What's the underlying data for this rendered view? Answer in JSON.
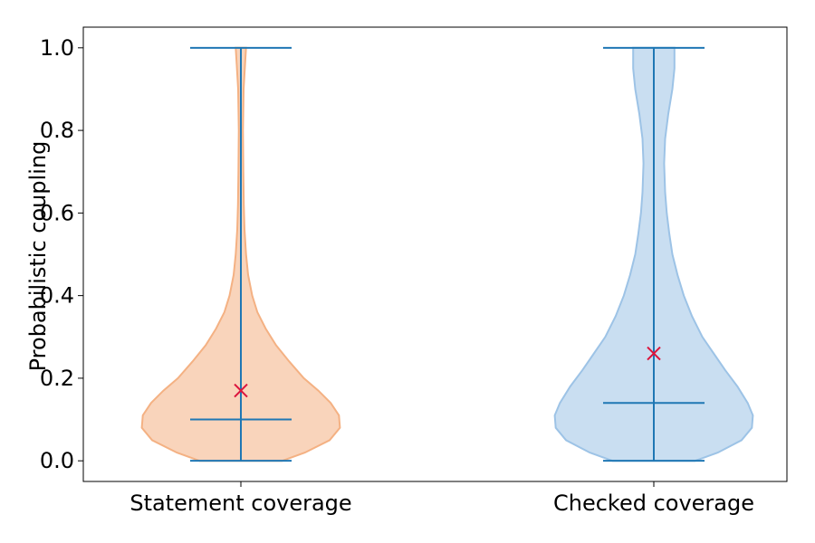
{
  "chart_data": {
    "type": "violin",
    "ylabel": "Probabilistic coupling",
    "ylim": [
      -0.05,
      1.05
    ],
    "yticks": [
      "0.0",
      "0.2",
      "0.4",
      "0.6",
      "0.8",
      "1.0"
    ],
    "grid": false,
    "categories": [
      "Statement coverage",
      "Checked coverage"
    ],
    "series": [
      {
        "category": "Statement coverage",
        "color": "#f4b183",
        "min": 0.0,
        "max": 1.0,
        "median": 0.1,
        "mean": 0.17,
        "density": [
          [
            0.0,
            0.4
          ],
          [
            0.02,
            0.62
          ],
          [
            0.05,
            0.86
          ],
          [
            0.08,
            0.96
          ],
          [
            0.11,
            0.95
          ],
          [
            0.14,
            0.87
          ],
          [
            0.17,
            0.75
          ],
          [
            0.2,
            0.61
          ],
          [
            0.24,
            0.47
          ],
          [
            0.28,
            0.34
          ],
          [
            0.32,
            0.24
          ],
          [
            0.36,
            0.16
          ],
          [
            0.4,
            0.11
          ],
          [
            0.45,
            0.07
          ],
          [
            0.5,
            0.05
          ],
          [
            0.56,
            0.035
          ],
          [
            0.62,
            0.028
          ],
          [
            0.7,
            0.024
          ],
          [
            0.8,
            0.02
          ],
          [
            0.9,
            0.026
          ],
          [
            0.96,
            0.04
          ],
          [
            1.0,
            0.05
          ]
        ]
      },
      {
        "category": "Checked coverage",
        "color": "#9dc3e6",
        "min": 0.0,
        "max": 1.0,
        "median": 0.14,
        "mean": 0.26,
        "density": [
          [
            0.0,
            0.4
          ],
          [
            0.02,
            0.62
          ],
          [
            0.05,
            0.85
          ],
          [
            0.08,
            0.95
          ],
          [
            0.11,
            0.96
          ],
          [
            0.14,
            0.91
          ],
          [
            0.18,
            0.81
          ],
          [
            0.22,
            0.69
          ],
          [
            0.26,
            0.58
          ],
          [
            0.3,
            0.47
          ],
          [
            0.35,
            0.37
          ],
          [
            0.4,
            0.29
          ],
          [
            0.45,
            0.23
          ],
          [
            0.5,
            0.18
          ],
          [
            0.55,
            0.15
          ],
          [
            0.6,
            0.125
          ],
          [
            0.65,
            0.11
          ],
          [
            0.72,
            0.1
          ],
          [
            0.78,
            0.11
          ],
          [
            0.84,
            0.14
          ],
          [
            0.9,
            0.18
          ],
          [
            0.95,
            0.2
          ],
          [
            1.0,
            0.2
          ]
        ]
      }
    ]
  }
}
